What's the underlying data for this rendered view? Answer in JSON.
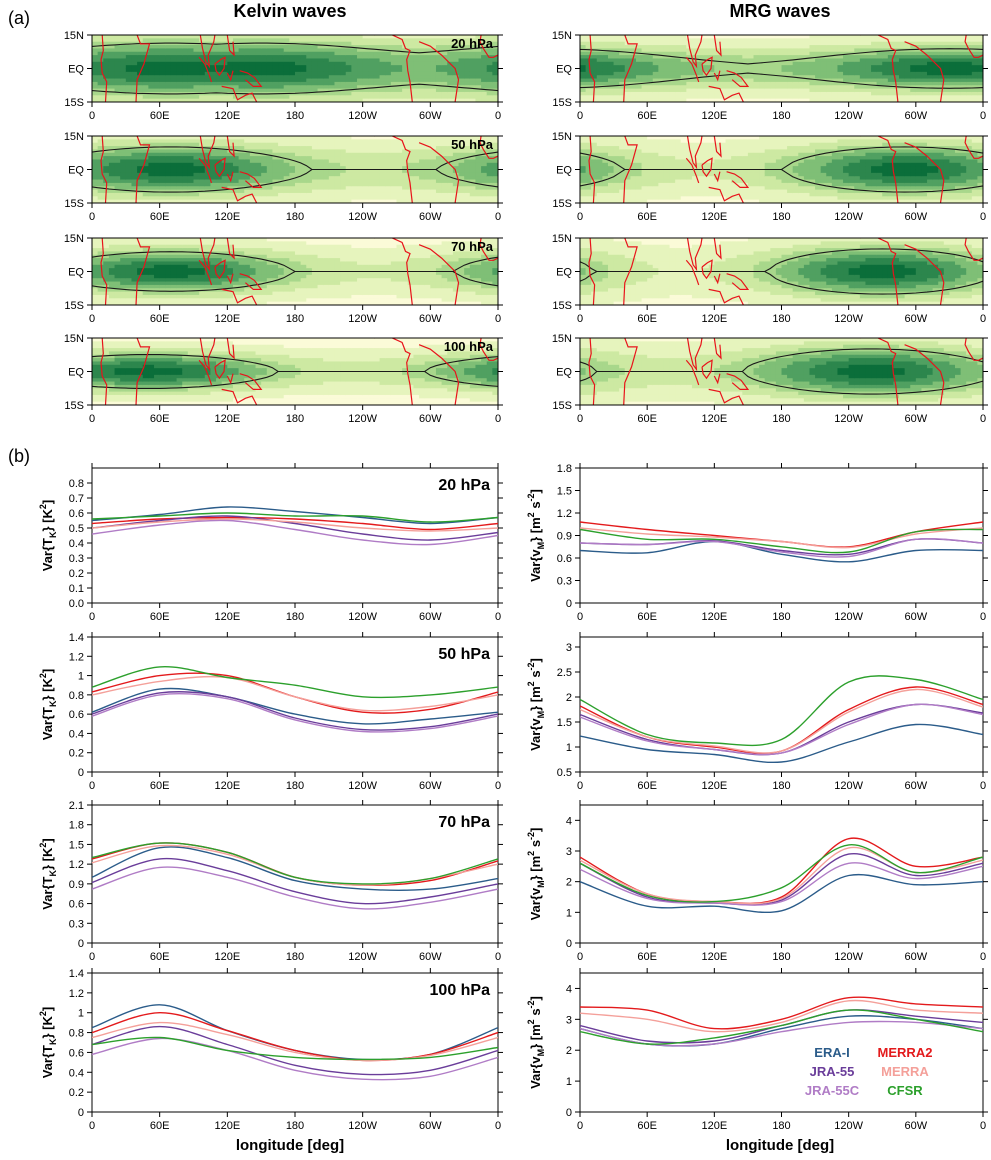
{
  "panel_labels": {
    "a": "(a)",
    "b": "(b)"
  },
  "column_titles": {
    "left": "Kelvin waves",
    "right": "MRG waves"
  },
  "map_axes": {
    "y_ticks": [
      "15N",
      "EQ",
      "15S"
    ],
    "x_ticks": [
      "0",
      "60E",
      "120E",
      "180",
      "120W",
      "60W",
      "0"
    ]
  },
  "levels": [
    "20 hPa",
    "50 hPa",
    "70 hPa",
    "100 hPa"
  ],
  "xlabel": "longitude [deg]",
  "legend": [
    {
      "name": "ERA-I",
      "color": "#2b5c8a"
    },
    {
      "name": "MERRA2",
      "color": "#e31a1c"
    },
    {
      "name": "JRA-55",
      "color": "#6a3d9a"
    },
    {
      "name": "MERRA",
      "color": "#f4a09a"
    },
    {
      "name": "JRA-55C",
      "color": "#b07cc6"
    },
    {
      "name": "CFSR",
      "color": "#2ca02c"
    }
  ],
  "colors": {
    "coast": "#e8131b",
    "contour": "#1a1a1a",
    "shade_light": "#fbfbd8",
    "shade_dark": "#0b6e3a"
  },
  "chart_data": [
    {
      "type": "heatmap",
      "wave": "Kelvin",
      "level": "20 hPa",
      "peak_lon": [
        70,
        150
      ],
      "halfwidth_lat": 9,
      "min_level": 0.55
    },
    {
      "type": "heatmap",
      "wave": "Kelvin",
      "level": "50 hPa",
      "peak_lon": [
        70
      ],
      "halfwidth_lat": 8,
      "min_level": 0.3
    },
    {
      "type": "heatmap",
      "wave": "Kelvin",
      "level": "70 hPa",
      "peak_lon": [
        70
      ],
      "halfwidth_lat": 7,
      "min_level": 0.2
    },
    {
      "type": "heatmap",
      "wave": "Kelvin",
      "level": "100 hPa",
      "peak_lon": [
        50
      ],
      "halfwidth_lat": 6,
      "min_level": 0.25
    },
    {
      "type": "heatmap",
      "wave": "MRG",
      "level": "20 hPa",
      "peak_lon": [
        330
      ],
      "halfwidth_lat": 7,
      "min_level": 0.45
    },
    {
      "type": "heatmap",
      "wave": "MRG",
      "level": "50 hPa",
      "peak_lon": [
        290
      ],
      "halfwidth_lat": 8,
      "min_level": 0.2
    },
    {
      "type": "heatmap",
      "wave": "MRG",
      "level": "70 hPa",
      "peak_lon": [
        270
      ],
      "halfwidth_lat": 8,
      "min_level": 0.15
    },
    {
      "type": "heatmap",
      "wave": "MRG",
      "level": "100 hPa",
      "peak_lon": [
        260
      ],
      "halfwidth_lat": 8,
      "min_level": 0.25
    },
    {
      "type": "line",
      "wave": "Kelvin",
      "level": "20 hPa",
      "ylabel": "Var{T_K} [K^2]",
      "ylim": [
        0,
        0.9
      ],
      "yticks": [
        "0.0",
        "0.1",
        "0.2",
        "0.3",
        "0.4",
        "0.5",
        "0.6",
        "0.7",
        "0.8"
      ],
      "x": [
        0,
        60,
        120,
        180,
        240,
        300,
        360
      ],
      "series": [
        {
          "name": "ERA-I",
          "values": [
            0.55,
            0.59,
            0.64,
            0.61,
            0.57,
            0.53,
            0.57
          ]
        },
        {
          "name": "MERRA2",
          "values": [
            0.53,
            0.56,
            0.57,
            0.56,
            0.53,
            0.49,
            0.53
          ]
        },
        {
          "name": "JRA-55",
          "values": [
            0.5,
            0.55,
            0.58,
            0.53,
            0.46,
            0.42,
            0.47
          ]
        },
        {
          "name": "MERRA",
          "values": [
            0.5,
            0.54,
            0.56,
            0.54,
            0.5,
            0.48,
            0.5
          ]
        },
        {
          "name": "JRA-55C",
          "values": [
            0.46,
            0.52,
            0.55,
            0.49,
            0.42,
            0.39,
            0.45
          ]
        },
        {
          "name": "CFSR",
          "values": [
            0.56,
            0.58,
            0.6,
            0.58,
            0.58,
            0.54,
            0.57
          ]
        }
      ]
    },
    {
      "type": "line",
      "wave": "Kelvin",
      "level": "50 hPa",
      "ylabel": "Var{T_K} [K^2]",
      "ylim": [
        0,
        1.4
      ],
      "yticks": [
        "0",
        "0.2",
        "0.4",
        "0.6",
        "0.8",
        "1",
        "1.2",
        "1.4"
      ],
      "x": [
        0,
        60,
        120,
        180,
        240,
        300,
        360
      ],
      "series": [
        {
          "name": "ERA-I",
          "values": [
            0.62,
            0.86,
            0.78,
            0.6,
            0.5,
            0.55,
            0.62
          ]
        },
        {
          "name": "MERRA2",
          "values": [
            0.83,
            1.0,
            1.0,
            0.78,
            0.62,
            0.65,
            0.83
          ]
        },
        {
          "name": "JRA-55",
          "values": [
            0.6,
            0.82,
            0.78,
            0.56,
            0.44,
            0.47,
            0.6
          ]
        },
        {
          "name": "MERRA",
          "values": [
            0.8,
            0.94,
            0.98,
            0.78,
            0.64,
            0.68,
            0.8
          ]
        },
        {
          "name": "JRA-55C",
          "values": [
            0.58,
            0.8,
            0.76,
            0.54,
            0.42,
            0.45,
            0.58
          ]
        },
        {
          "name": "CFSR",
          "values": [
            0.88,
            1.09,
            0.98,
            0.9,
            0.78,
            0.8,
            0.88
          ]
        }
      ]
    },
    {
      "type": "line",
      "wave": "Kelvin",
      "level": "70 hPa",
      "ylabel": "Var{T_K} [K^2]",
      "ylim": [
        0,
        2.1
      ],
      "yticks": [
        "0",
        "0.3",
        "0.6",
        "0.9",
        "1.2",
        "1.5",
        "1.8",
        "2.1"
      ],
      "x": [
        0,
        60,
        120,
        180,
        240,
        300,
        360
      ],
      "series": [
        {
          "name": "ERA-I",
          "values": [
            1.0,
            1.45,
            1.3,
            0.95,
            0.82,
            0.82,
            0.98
          ]
        },
        {
          "name": "MERRA2",
          "values": [
            1.28,
            1.52,
            1.38,
            1.0,
            0.88,
            0.95,
            1.25
          ]
        },
        {
          "name": "JRA-55",
          "values": [
            0.92,
            1.28,
            1.1,
            0.78,
            0.6,
            0.7,
            0.9
          ]
        },
        {
          "name": "MERRA",
          "values": [
            1.22,
            1.48,
            1.35,
            1.0,
            0.88,
            0.98,
            1.2
          ]
        },
        {
          "name": "JRA-55C",
          "values": [
            0.82,
            1.15,
            1.0,
            0.7,
            0.52,
            0.62,
            0.82
          ]
        },
        {
          "name": "CFSR",
          "values": [
            1.3,
            1.52,
            1.38,
            1.0,
            0.9,
            0.98,
            1.28
          ]
        }
      ]
    },
    {
      "type": "line",
      "wave": "Kelvin",
      "level": "100 hPa",
      "ylabel": "Var{T_K} [K^2]",
      "ylim": [
        0,
        1.4
      ],
      "yticks": [
        "0",
        "0.2",
        "0.4",
        "0.6",
        "0.8",
        "1",
        "1.2",
        "1.4"
      ],
      "x": [
        0,
        60,
        120,
        180,
        240,
        300,
        360
      ],
      "series": [
        {
          "name": "ERA-I",
          "values": [
            0.85,
            1.08,
            0.82,
            0.62,
            0.53,
            0.58,
            0.85
          ]
        },
        {
          "name": "MERRA2",
          "values": [
            0.8,
            1.0,
            0.82,
            0.62,
            0.52,
            0.58,
            0.8
          ]
        },
        {
          "name": "JRA-55",
          "values": [
            0.68,
            0.86,
            0.68,
            0.47,
            0.38,
            0.42,
            0.62
          ]
        },
        {
          "name": "MERRA",
          "values": [
            0.75,
            0.9,
            0.78,
            0.6,
            0.52,
            0.57,
            0.75
          ]
        },
        {
          "name": "JRA-55C",
          "values": [
            0.58,
            0.74,
            0.62,
            0.42,
            0.33,
            0.36,
            0.55
          ]
        },
        {
          "name": "CFSR",
          "values": [
            0.68,
            0.75,
            0.62,
            0.55,
            0.53,
            0.55,
            0.65
          ]
        }
      ]
    },
    {
      "type": "line",
      "wave": "MRG",
      "level": "20 hPa",
      "ylabel": "Var{v_M} [m^2 s^-2]",
      "ylim": [
        0,
        1.8
      ],
      "yticks": [
        "0",
        "0.3",
        "0.6",
        "0.9",
        "1.2",
        "1.5",
        "1.8"
      ],
      "x": [
        0,
        60,
        120,
        180,
        240,
        300,
        360
      ],
      "series": [
        {
          "name": "ERA-I",
          "values": [
            0.7,
            0.67,
            0.82,
            0.65,
            0.55,
            0.7,
            0.7
          ]
        },
        {
          "name": "MERRA2",
          "values": [
            1.08,
            0.98,
            0.9,
            0.82,
            0.75,
            0.95,
            1.08
          ]
        },
        {
          "name": "JRA-55",
          "values": [
            0.8,
            0.78,
            0.83,
            0.7,
            0.65,
            0.85,
            0.8
          ]
        },
        {
          "name": "MERRA",
          "values": [
            1.0,
            0.92,
            0.88,
            0.82,
            0.74,
            0.92,
            1.0
          ]
        },
        {
          "name": "JRA-55C",
          "values": [
            0.8,
            0.78,
            0.82,
            0.68,
            0.62,
            0.85,
            0.8
          ]
        },
        {
          "name": "CFSR",
          "values": [
            0.98,
            0.85,
            0.85,
            0.75,
            0.68,
            0.95,
            0.98
          ]
        }
      ]
    },
    {
      "type": "line",
      "wave": "MRG",
      "level": "50 hPa",
      "ylabel": "Var{v_M} [m^2 s^-2]",
      "ylim": [
        0.5,
        3.2
      ],
      "yticks": [
        "0.5",
        "1",
        "1.5",
        "2",
        "2.5",
        "3"
      ],
      "x": [
        0,
        60,
        120,
        180,
        240,
        300,
        360
      ],
      "series": [
        {
          "name": "ERA-I",
          "values": [
            1.22,
            0.95,
            0.85,
            0.7,
            1.1,
            1.45,
            1.25
          ]
        },
        {
          "name": "MERRA2",
          "values": [
            1.82,
            1.2,
            1.0,
            0.92,
            1.75,
            2.2,
            1.85
          ]
        },
        {
          "name": "JRA-55",
          "values": [
            1.65,
            1.15,
            0.95,
            0.88,
            1.5,
            1.85,
            1.68
          ]
        },
        {
          "name": "MERRA",
          "values": [
            1.75,
            1.2,
            1.02,
            0.92,
            1.7,
            2.15,
            1.8
          ]
        },
        {
          "name": "JRA-55C",
          "values": [
            1.6,
            1.12,
            0.95,
            0.88,
            1.45,
            1.85,
            1.65
          ]
        },
        {
          "name": "CFSR",
          "values": [
            1.95,
            1.25,
            1.08,
            1.15,
            2.3,
            2.35,
            1.95
          ]
        }
      ]
    },
    {
      "type": "line",
      "wave": "MRG",
      "level": "70 hPa",
      "ylabel": "Var{v_M} [m^2 s^-2]",
      "ylim": [
        0,
        4.5
      ],
      "yticks": [
        "0",
        "1",
        "2",
        "3",
        "4"
      ],
      "x": [
        0,
        60,
        120,
        180,
        240,
        300,
        360
      ],
      "series": [
        {
          "name": "ERA-I",
          "values": [
            2.0,
            1.2,
            1.2,
            1.05,
            2.2,
            1.9,
            2.0
          ]
        },
        {
          "name": "MERRA2",
          "values": [
            2.8,
            1.6,
            1.35,
            1.5,
            3.4,
            2.5,
            2.8
          ]
        },
        {
          "name": "JRA-55",
          "values": [
            2.6,
            1.5,
            1.3,
            1.4,
            2.9,
            2.2,
            2.6
          ]
        },
        {
          "name": "MERRA",
          "values": [
            2.7,
            1.6,
            1.35,
            1.45,
            3.1,
            2.3,
            2.7
          ]
        },
        {
          "name": "JRA-55C",
          "values": [
            2.4,
            1.45,
            1.3,
            1.35,
            2.6,
            2.1,
            2.5
          ]
        },
        {
          "name": "CFSR",
          "values": [
            2.6,
            1.55,
            1.35,
            1.8,
            3.2,
            2.3,
            2.8
          ]
        }
      ]
    },
    {
      "type": "line",
      "wave": "MRG",
      "level": "100 hPa",
      "ylabel": "Var{v_M} [m^2 s^-2]",
      "ylim": [
        0,
        4.5
      ],
      "yticks": [
        "0",
        "1",
        "2",
        "3",
        "4"
      ],
      "x": [
        0,
        60,
        120,
        180,
        240,
        300,
        360
      ],
      "series": [
        {
          "name": "ERA-I",
          "values": [
            2.7,
            2.2,
            2.2,
            2.7,
            3.1,
            3.0,
            2.7
          ]
        },
        {
          "name": "MERRA2",
          "values": [
            3.4,
            3.3,
            2.7,
            3.0,
            3.7,
            3.5,
            3.4
          ]
        },
        {
          "name": "JRA-55",
          "values": [
            2.8,
            2.3,
            2.3,
            2.8,
            3.3,
            3.1,
            2.9
          ]
        },
        {
          "name": "MERRA",
          "values": [
            3.2,
            3.0,
            2.6,
            2.9,
            3.6,
            3.3,
            3.2
          ]
        },
        {
          "name": "JRA-55C",
          "values": [
            2.7,
            2.2,
            2.2,
            2.6,
            2.9,
            2.9,
            2.7
          ]
        },
        {
          "name": "CFSR",
          "values": [
            2.6,
            2.2,
            2.4,
            2.8,
            3.3,
            3.0,
            2.6
          ]
        }
      ]
    }
  ]
}
